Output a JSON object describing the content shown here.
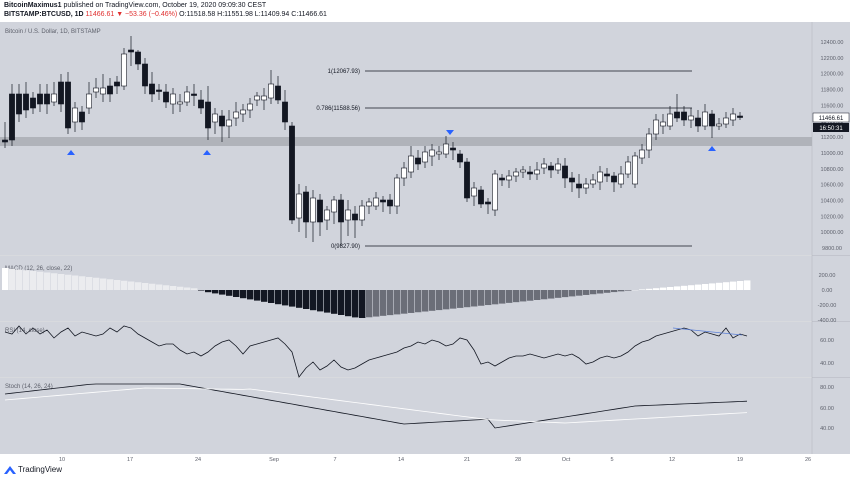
{
  "header": {
    "author": "BitcoinMaximus1",
    "published": "published on TradingView.com, October 19, 2020 09:09:30 CEST",
    "symbol": "BITSTAMP:BTCUSD, 1D",
    "last": "11466.61",
    "change": "▼ −53.36 (−0.46%)",
    "ohlc": "O:11518.58 H:11551.98 L:11409.94 C:11466.61"
  },
  "main_pane": {
    "title": "Bitcoin / U.S. Dollar, 1D, BITSTAMP",
    "y_ticks": [
      "12400.00",
      "12200.00",
      "12000.00",
      "11800.00",
      "11600.00",
      "11400.00",
      "11200.00",
      "11000.00",
      "10800.00",
      "10600.00",
      "10400.00",
      "10200.00",
      "10000.00",
      "9800.00"
    ],
    "price_badge": "11466.61",
    "time_badge": "16:50:31",
    "fib_levels": [
      {
        "label": "1(12067.93)",
        "price": 12067.93
      },
      {
        "label": "0.786(11588.56)",
        "price": 11588.56
      },
      {
        "label": "0(9827.90)",
        "price": 9827.9
      }
    ],
    "support_zone": [
      11100,
      11200
    ]
  },
  "macd_pane": {
    "title": "MACD (12, 26, close, 22)",
    "y_ticks": [
      "200.00",
      "0.00",
      "-200.00",
      "-400.00"
    ]
  },
  "rsi_pane": {
    "title": "RSI (14, close)",
    "y_ticks": [
      "60.00",
      "40.00"
    ]
  },
  "stoch_pane": {
    "title": "Stoch (14, 26, 24)",
    "y_ticks": [
      "80.00",
      "60.00",
      "40.00"
    ]
  },
  "x_axis": {
    "labels": [
      "10",
      "17",
      "24",
      "Sep",
      "7",
      "14",
      "21",
      "28",
      "Oct",
      "5",
      "12",
      "19",
      "26"
    ]
  },
  "footer": {
    "brand": "TradingView"
  },
  "colors": {
    "pane_bg": "#d1d4dc",
    "up": "#ffffff",
    "down": "#131722",
    "marker": "#2962ff"
  }
}
